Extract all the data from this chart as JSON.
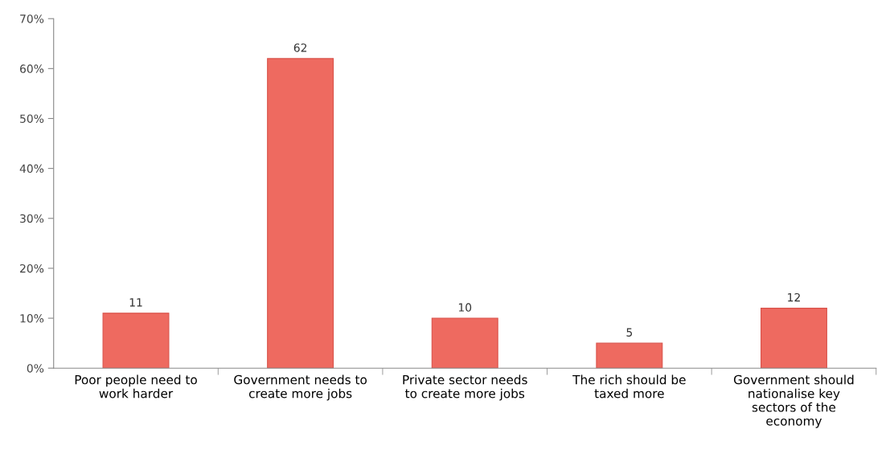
{
  "chart_data": {
    "type": "bar",
    "categories": [
      "Poor people need to\nwork harder",
      "Government needs to\ncreate more jobs",
      "Private sector needs\nto create more jobs",
      "The rich should be\ntaxed more",
      "Government should\nnationalise key\nsectors of the\neconomy"
    ],
    "values": [
      11,
      62,
      10,
      5,
      12
    ],
    "color": "#ee6a60",
    "ylim": [
      0,
      70
    ],
    "yticks": [
      {
        "value": 0,
        "label": "0%"
      },
      {
        "value": 10,
        "label": "10%"
      },
      {
        "value": 20,
        "label": "20%"
      },
      {
        "value": 30,
        "label": "30%"
      },
      {
        "value": 40,
        "label": "40%"
      },
      {
        "value": 50,
        "label": "50%"
      },
      {
        "value": 60,
        "label": "60%"
      },
      {
        "value": 70,
        "label": "70%"
      }
    ],
    "data_labels": true,
    "grid": false,
    "legend": false
  }
}
